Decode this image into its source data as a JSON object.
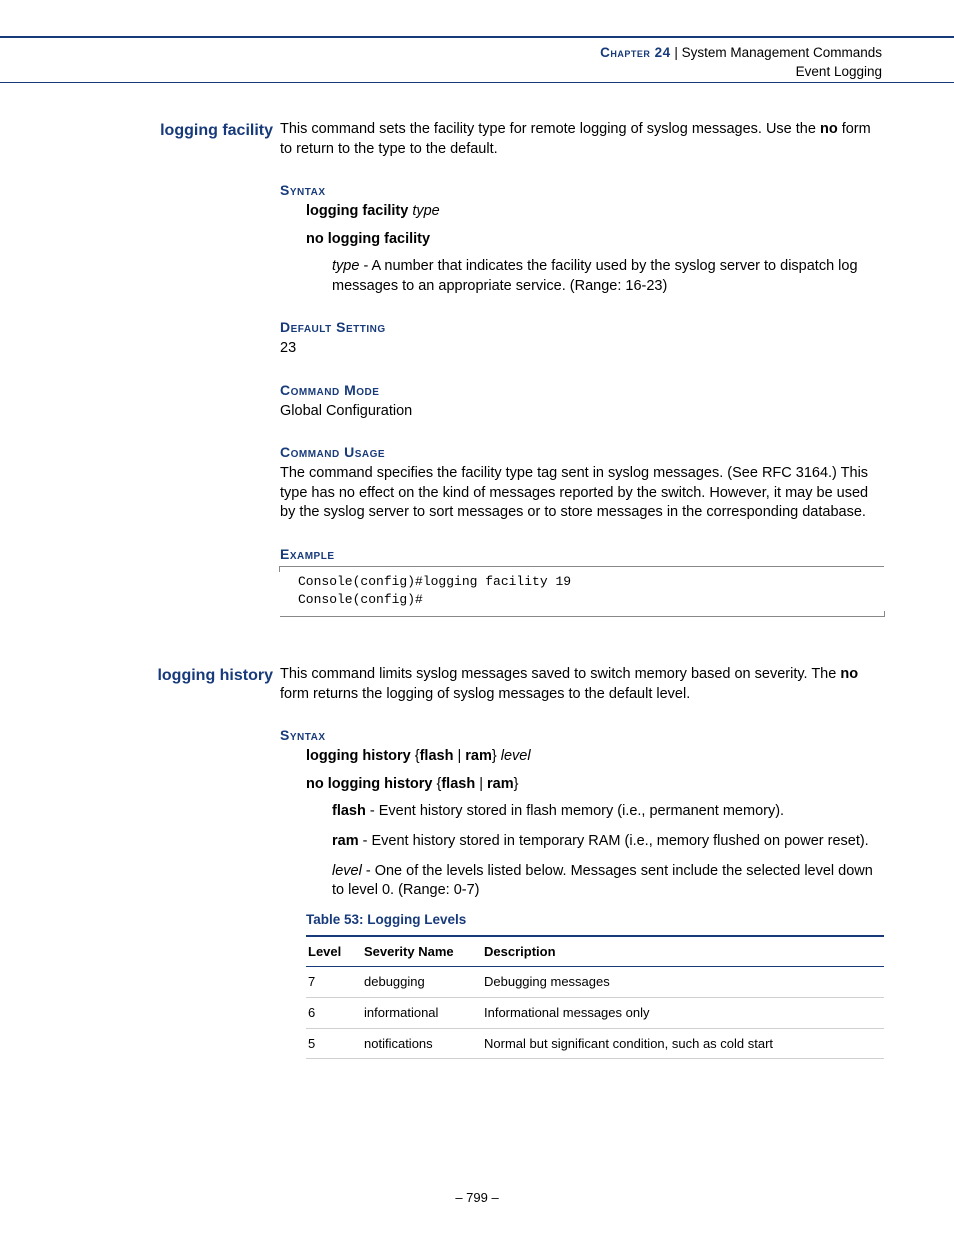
{
  "colors": {
    "accent": "#173a7a",
    "body_text": "#000000",
    "rule_gray": "#888888",
    "table_row_border": "#d0d0d0",
    "background": "#ffffff"
  },
  "typography": {
    "body_font": "Verdana",
    "mono_font": "Courier New",
    "body_size_pt": 11,
    "heading_smallcaps": true
  },
  "header": {
    "chapter_label": "Chapter 24",
    "separator": "  |  ",
    "chapter_title": "System Management Commands",
    "section": "Event Logging"
  },
  "page_number": "–  799  –",
  "sections": {
    "logging_facility": {
      "title": "logging facility",
      "intro_pre": "This command sets the facility type for remote logging of syslog messages. Use the ",
      "intro_bold": "no",
      "intro_post": " form to return to the type to the default.",
      "intro_full": "",
      "syntax_heading": "Syntax",
      "syntax_line1_bold": "logging facility",
      "syntax_line1_ital": " type",
      "syntax_line2": "no logging facility",
      "type_param_ital": "type",
      "type_param_desc": " - A number that indicates the facility used by the syslog server to dispatch log messages to an appropriate service. (Range: 16-23)",
      "default_heading": "Default Setting",
      "default_value": "23",
      "mode_heading": "Command Mode",
      "mode_value": "Global Configuration",
      "usage_heading": "Command Usage",
      "usage_text": "The command specifies the facility type tag sent in syslog messages. (See RFC 3164.) This type has no effect on the kind of messages reported by the switch. However, it may be used by the syslog server to sort messages or to store messages in the corresponding database.",
      "example_heading": "Example",
      "example_text": "Console(config)#logging facility 19\nConsole(config)#"
    },
    "logging_history": {
      "title": "logging history",
      "intro_pre": "This command limits syslog messages saved to switch memory based on severity. The ",
      "intro_bold": "no",
      "intro_post": " form returns the logging of syslog messages to the default level.",
      "syntax_heading": "Syntax",
      "syntax_l1_b1": "logging history",
      "syntax_l1_br1": " {",
      "syntax_l1_b2": "flash",
      "syntax_l1_sep": " | ",
      "syntax_l1_b3": "ram",
      "syntax_l1_br2": "} ",
      "syntax_l1_ital": "level",
      "syntax_l2_b1": "no logging history",
      "syntax_l2_br1": " {",
      "syntax_l2_b2": "flash",
      "syntax_l2_sep": " | ",
      "syntax_l2_b3": "ram",
      "syntax_l2_br2": "}",
      "flash_b": "flash",
      "flash_desc": " - Event history stored in flash memory (i.e., permanent memory).",
      "ram_b": "ram",
      "ram_desc": " - Event history stored in temporary RAM (i.e., memory flushed on power reset).",
      "level_ital": "level",
      "level_desc": " - One of the levels listed below. Messages sent include the selected level down to level 0. (Range: 0-7)",
      "table_title": "Table 53: Logging Levels",
      "table": {
        "columns": [
          "Level",
          "Severity Name",
          "Description"
        ],
        "col_widths": [
          "56px",
          "120px",
          "auto"
        ],
        "header_border_color": "#173a7a",
        "row_border_color": "#d0d0d0",
        "rows": [
          [
            "7",
            "debugging",
            "Debugging messages"
          ],
          [
            "6",
            "informational",
            "Informational messages only"
          ],
          [
            "5",
            "notifications",
            "Normal but significant condition, such as cold start"
          ]
        ]
      }
    }
  }
}
